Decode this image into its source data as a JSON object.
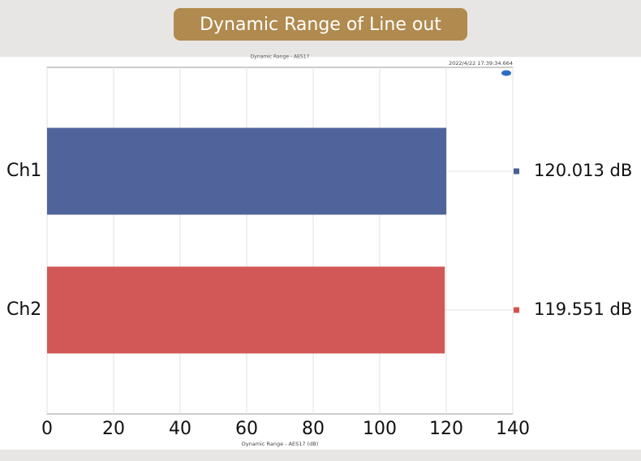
{
  "chart_data": {
    "type": "barh",
    "title": "Dynamic Range of Line out",
    "plot_title": "Dynamic Range - AES17",
    "timestamp": "2022/4/22 17:39:34.664",
    "xlabel": "Dynamic Range - AES17 (dB)",
    "categories": [
      "Ch1",
      "Ch2"
    ],
    "values": [
      120.013,
      119.551
    ],
    "value_labels": [
      "120.013 dB",
      "119.551 dB"
    ],
    "colors": [
      "#4a5f98",
      "#d05352"
    ],
    "xlim": [
      0,
      140
    ],
    "xticks": [
      0,
      20,
      40,
      60,
      80,
      100,
      120,
      140
    ],
    "grid": true
  }
}
